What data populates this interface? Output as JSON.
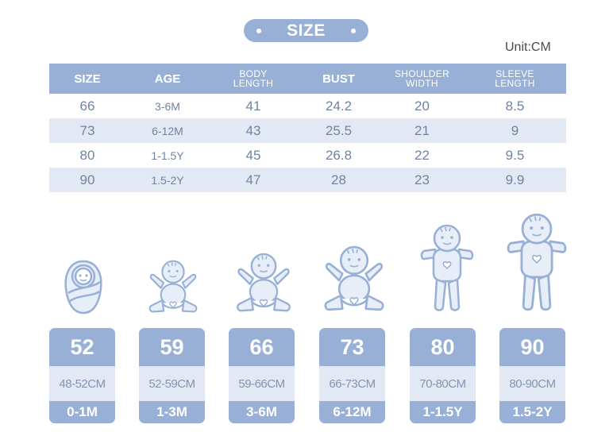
{
  "title": "SIZE",
  "unit_label": "Unit:CM",
  "table": {
    "headers": [
      "SIZE",
      "AGE",
      "BODY\nLENGTH",
      "BUST",
      "SHOULDER\nWIDTH",
      "SLEEVE\nLENGTH"
    ],
    "rows": [
      [
        "66",
        "3-6M",
        "41",
        "24.2",
        "20",
        "8.5"
      ],
      [
        "73",
        "6-12M",
        "43",
        "25.5",
        "21",
        "9"
      ],
      [
        "80",
        "1-1.5Y",
        "45",
        "26.8",
        "22",
        "9.5"
      ],
      [
        "90",
        "1.5-2Y",
        "47",
        "28",
        "23",
        "9.9"
      ]
    ]
  },
  "cards": [
    {
      "size": "52",
      "range": "48-52CM",
      "age": "0-1M",
      "figure": "swaddled-baby-icon"
    },
    {
      "size": "59",
      "range": "52-59CM",
      "age": "1-3M",
      "figure": "sitting-baby-icon"
    },
    {
      "size": "66",
      "range": "59-66CM",
      "age": "3-6M",
      "figure": "sitting-baby-icon"
    },
    {
      "size": "73",
      "range": "66-73CM",
      "age": "6-12M",
      "figure": "sitting-baby-icon"
    },
    {
      "size": "80",
      "range": "70-80CM",
      "age": "1-1.5Y",
      "figure": "standing-baby-icon"
    },
    {
      "size": "90",
      "range": "80-90CM",
      "age": "1.5-2Y",
      "figure": "standing-baby-icon"
    }
  ],
  "colors": {
    "accent": "#98b0d6",
    "light": "#e3e9f4",
    "icon_fill": "#e8eef8",
    "icon_stroke": "#98b0d6"
  }
}
